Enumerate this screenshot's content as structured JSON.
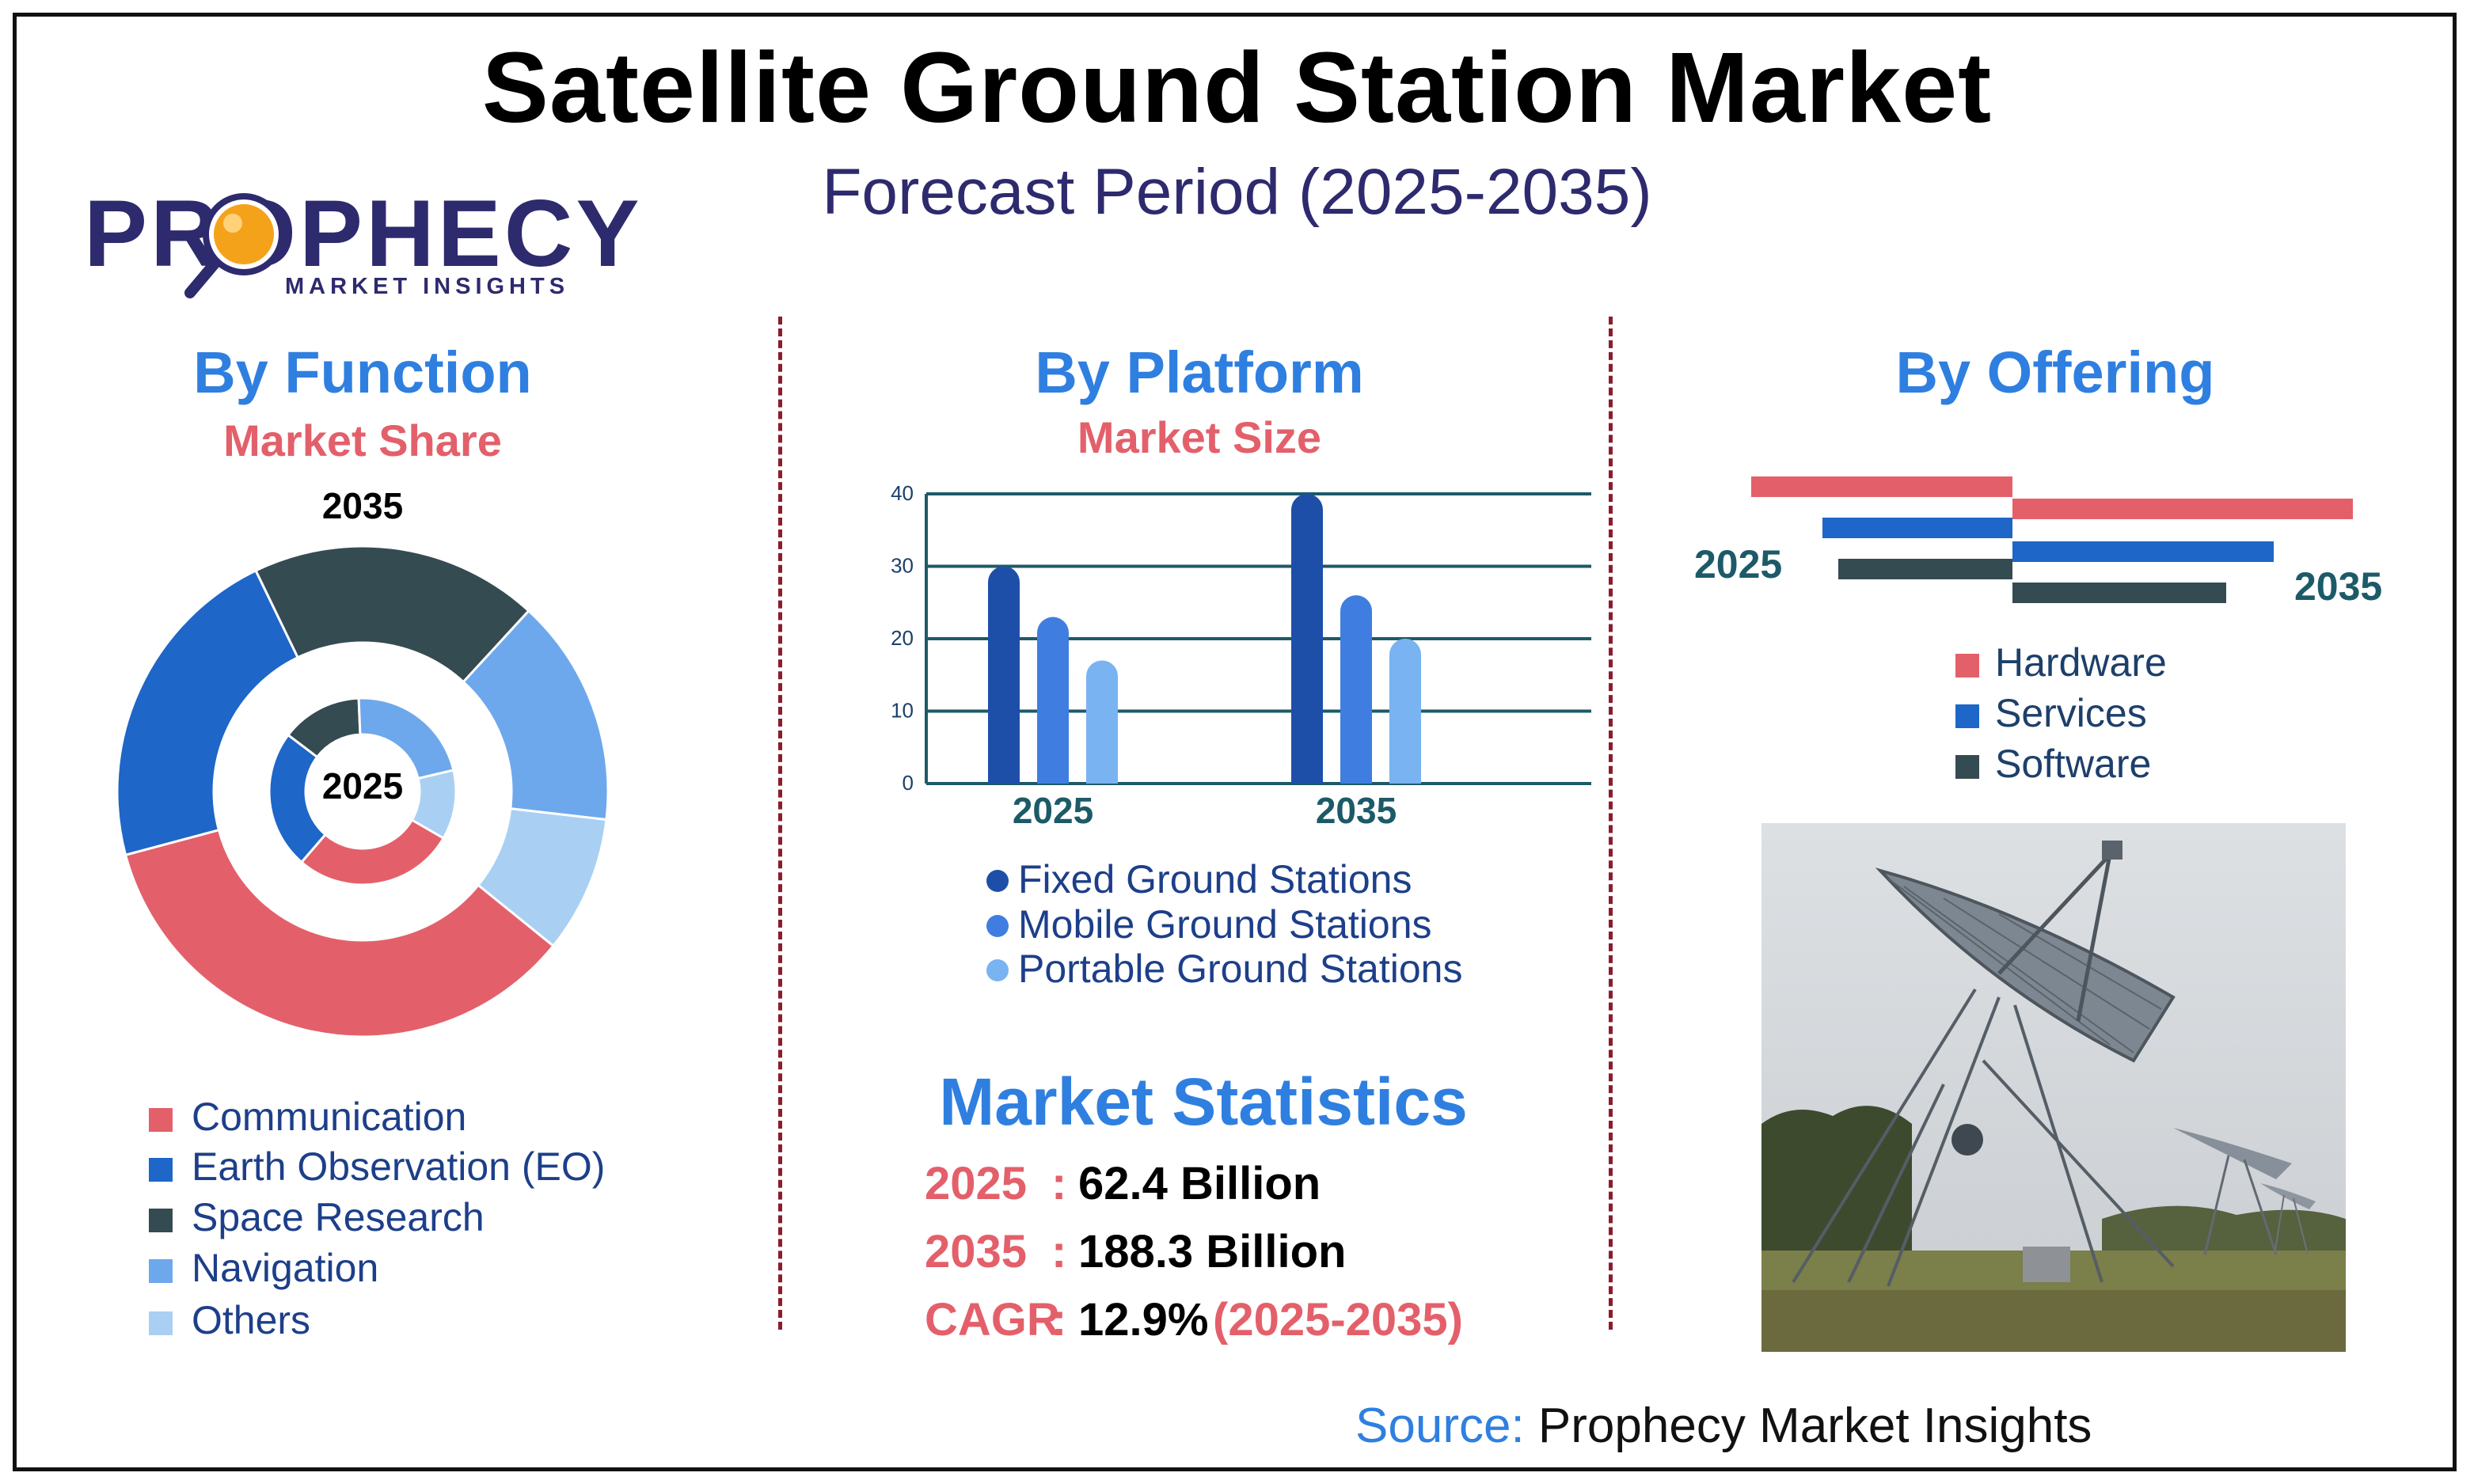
{
  "header": {
    "title": "Satellite Ground Station Market",
    "subtitle": "Forecast Period (2025-2035)"
  },
  "logo": {
    "wordmark": "PROPHECY",
    "tagline": "MARKET INSIGHTS",
    "colors": {
      "text": "#2e2a6e",
      "lens": "#f5a21b"
    }
  },
  "function_section": {
    "title": "By Function",
    "subtitle": "Market Share",
    "outer_year": "2035",
    "inner_year": "2025",
    "legend": [
      {
        "label": "Communication",
        "color": "#e3606b"
      },
      {
        "label": "Earth Observation (EO)",
        "color": "#1e66c8"
      },
      {
        "label": "Space Research",
        "color": "#354b52"
      },
      {
        "label": "Navigation",
        "color": "#6ea8ec"
      },
      {
        "label": "Others",
        "color": "#a9d0f3"
      }
    ]
  },
  "platform_section": {
    "title": "By Platform",
    "subtitle": "Market Size",
    "legend": [
      {
        "label": "Fixed Ground Stations",
        "color": "#1e4fa8"
      },
      {
        "label": "Mobile Ground Stations",
        "color": "#3f7ee0"
      },
      {
        "label": "Portable Ground Stations",
        "color": "#79b3f2"
      }
    ]
  },
  "offering_section": {
    "title": "By Offering",
    "left_year": "2025",
    "right_year": "2035",
    "legend": [
      {
        "label": "Hardware",
        "color": "#e3606b"
      },
      {
        "label": "Services",
        "color": "#1e66c8"
      },
      {
        "label": "Software",
        "color": "#354b52"
      }
    ]
  },
  "statistics": {
    "title": "Market Statistics",
    "rows": [
      {
        "label": "2025",
        "value": "62.4 Billion",
        "extra": ""
      },
      {
        "label": "2035",
        "value": "188.3 Billion",
        "extra": ""
      },
      {
        "label": "CAGR",
        "value": "12.9%",
        "extra": "(2025-2035)"
      }
    ]
  },
  "source": {
    "prefix": "Source:",
    "name": "Prophecy Market Insights"
  },
  "chart_data": [
    {
      "type": "pie",
      "chart": "donut-outer",
      "year": "2035",
      "categories": [
        "Communication",
        "Earth Observation (EO)",
        "Space Research",
        "Navigation",
        "Others"
      ],
      "values": [
        35,
        22,
        19,
        15,
        9
      ]
    },
    {
      "type": "pie",
      "chart": "donut-inner",
      "year": "2025",
      "categories": [
        "Communication",
        "Earth Observation (EO)",
        "Space Research",
        "Navigation",
        "Others"
      ],
      "values": [
        28,
        24,
        14,
        22,
        12
      ]
    },
    {
      "type": "bar",
      "categories": [
        "2025",
        "2035"
      ],
      "series": [
        {
          "name": "Fixed Ground Stations",
          "values": [
            30,
            40
          ]
        },
        {
          "name": "Mobile Ground Stations",
          "values": [
            23,
            26
          ]
        },
        {
          "name": "Portable Ground Stations",
          "values": [
            17,
            20
          ]
        }
      ],
      "yticks": [
        "0",
        "10",
        "20",
        "30",
        "40"
      ],
      "ylim": [
        0,
        40
      ],
      "grid": true
    },
    {
      "type": "bar",
      "chart": "horizontal-butterfly",
      "categories": [
        "Hardware",
        "Services",
        "Software"
      ],
      "series": [
        {
          "name": "2025",
          "values": [
            33,
            24,
            22
          ]
        },
        {
          "name": "2035",
          "values": [
            43,
            33,
            27
          ]
        }
      ]
    }
  ]
}
